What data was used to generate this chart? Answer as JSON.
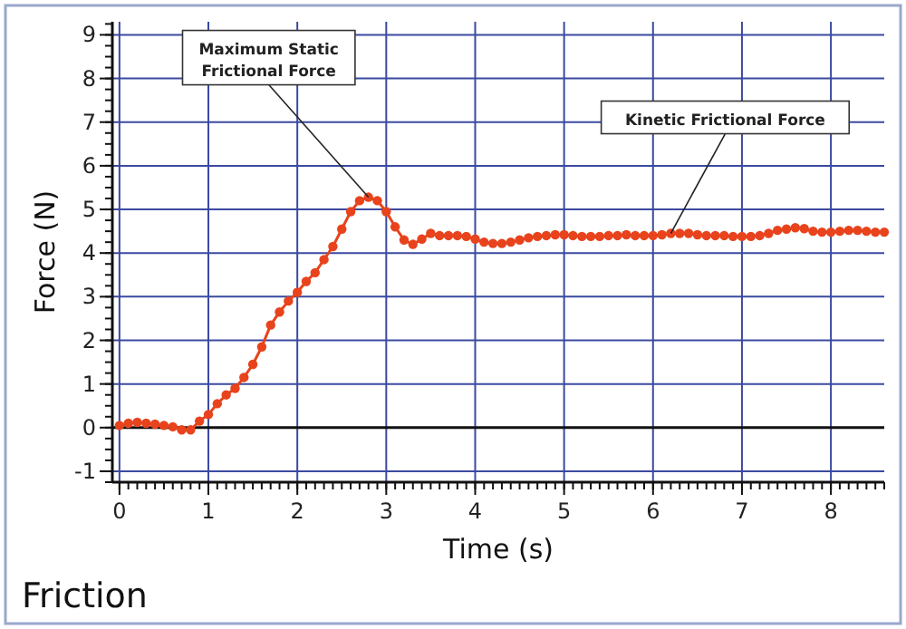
{
  "chart_data": {
    "type": "line",
    "title": "Friction",
    "xlabel": "Time (s)",
    "ylabel": "Force (N)",
    "x": [
      0,
      0.1,
      0.2,
      0.3,
      0.4,
      0.5,
      0.6,
      0.7,
      0.8,
      0.9,
      1.0,
      1.1,
      1.2,
      1.3,
      1.4,
      1.5,
      1.6,
      1.7,
      1.8,
      1.9,
      2.0,
      2.1,
      2.2,
      2.3,
      2.4,
      2.5,
      2.6,
      2.7,
      2.8,
      2.9,
      3.0,
      3.1,
      3.2,
      3.3,
      3.4,
      3.5,
      3.6,
      3.7,
      3.8,
      3.9,
      4.0,
      4.1,
      4.2,
      4.3,
      4.4,
      4.5,
      4.6,
      4.7,
      4.8,
      4.9,
      5.0,
      5.1,
      5.2,
      5.3,
      5.4,
      5.5,
      5.6,
      5.7,
      5.8,
      5.9,
      6.0,
      6.1,
      6.2,
      6.3,
      6.4,
      6.5,
      6.6,
      6.7,
      6.8,
      6.9,
      7.0,
      7.1,
      7.2,
      7.3,
      7.4,
      7.5,
      7.6,
      7.7,
      7.8,
      7.9,
      8.0,
      8.1,
      8.2,
      8.3,
      8.4,
      8.5,
      8.6
    ],
    "series": [
      {
        "color": "#e8431c",
        "values": [
          0.05,
          0.1,
          0.12,
          0.1,
          0.08,
          0.05,
          0.02,
          -0.05,
          -0.05,
          0.15,
          0.3,
          0.55,
          0.75,
          0.9,
          1.15,
          1.45,
          1.85,
          2.35,
          2.65,
          2.9,
          3.1,
          3.35,
          3.55,
          3.85,
          4.15,
          4.55,
          4.95,
          5.2,
          5.28,
          5.2,
          4.95,
          4.6,
          4.3,
          4.2,
          4.32,
          4.45,
          4.4,
          4.4,
          4.4,
          4.38,
          4.32,
          4.25,
          4.22,
          4.22,
          4.25,
          4.3,
          4.35,
          4.38,
          4.4,
          4.42,
          4.42,
          4.4,
          4.38,
          4.38,
          4.38,
          4.4,
          4.4,
          4.42,
          4.4,
          4.4,
          4.4,
          4.42,
          4.45,
          4.45,
          4.45,
          4.42,
          4.4,
          4.4,
          4.4,
          4.38,
          4.38,
          4.38,
          4.4,
          4.45,
          4.52,
          4.55,
          4.58,
          4.56,
          4.5,
          4.48,
          4.48,
          4.5,
          4.52,
          4.52,
          4.5,
          4.48,
          4.48
        ]
      }
    ],
    "xlim": [
      -0.08,
      8.6
    ],
    "ylim": [
      -1.25,
      9.3
    ],
    "xticks": [
      0,
      1,
      2,
      3,
      4,
      5,
      6,
      7,
      8
    ],
    "yticks": [
      -1,
      0,
      1,
      2,
      3,
      4,
      5,
      6,
      7,
      8,
      9
    ],
    "grid": true,
    "marker": "circle",
    "line_style": "solid",
    "annotations": [
      {
        "text": "Maximum Static\nFrictional Force",
        "x": 2.8,
        "y": 5.28
      },
      {
        "text": "Kinetic Frictional Force",
        "x": 6.2,
        "y": 4.45
      }
    ]
  }
}
